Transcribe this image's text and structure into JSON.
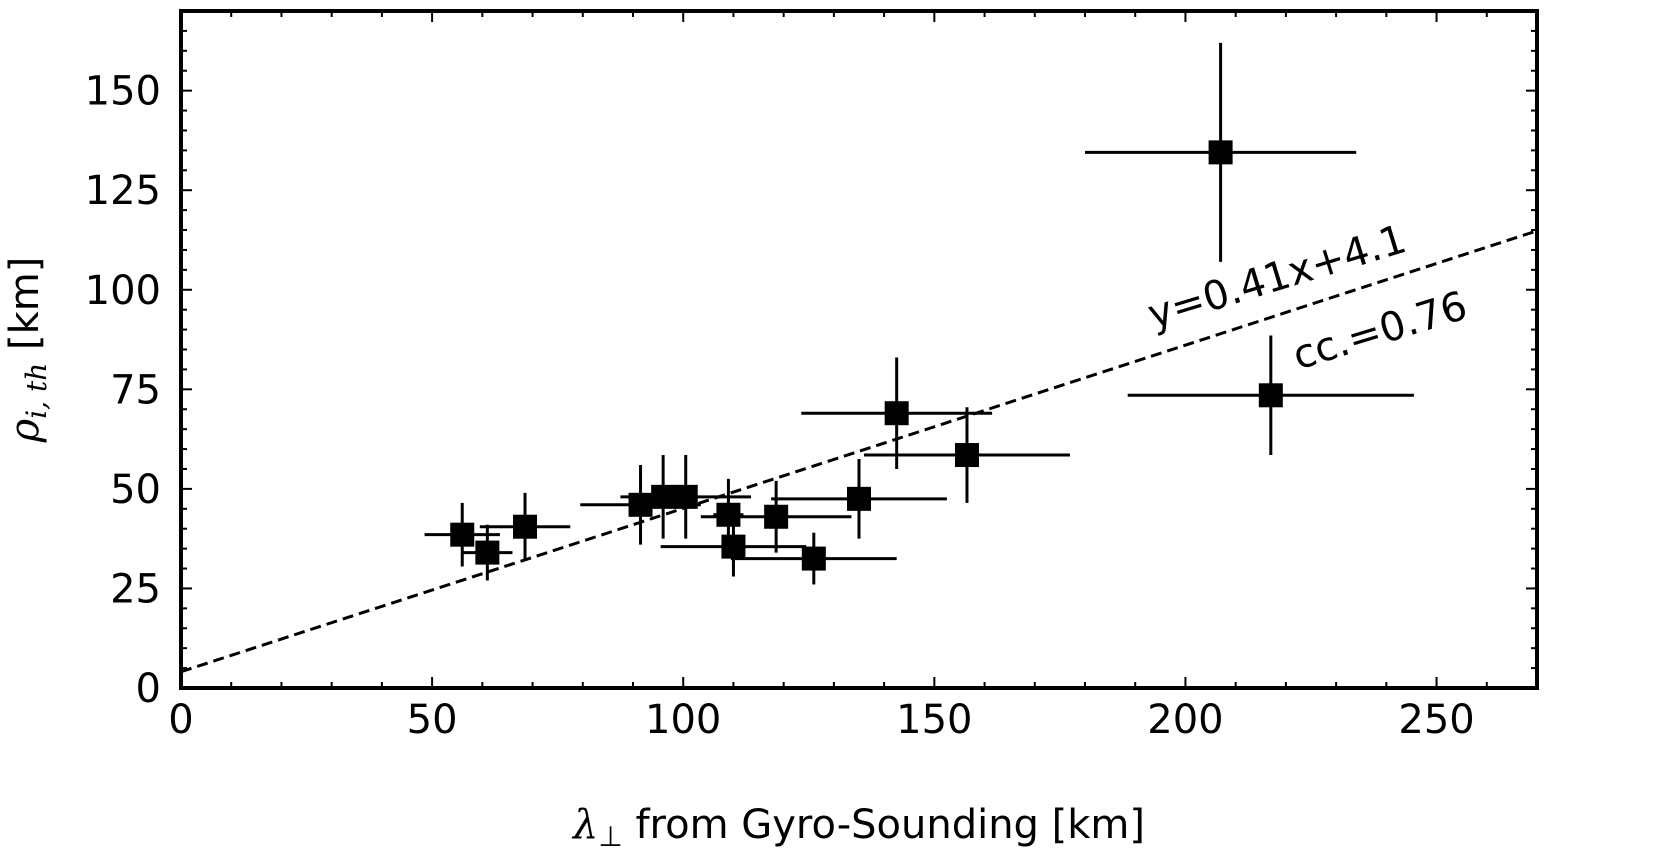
{
  "chart_data": {
    "type": "scatter",
    "title": "",
    "xlabel": {
      "symbol": "λ",
      "subscript": "⊥",
      "text": " from Gyro-Sounding [km]"
    },
    "ylabel": {
      "symbol": "ρ",
      "subscript": "i, th",
      "text": " [km]"
    },
    "xlim": [
      0,
      270
    ],
    "ylim": [
      0,
      170
    ],
    "xticks": [
      0,
      50,
      100,
      150,
      200,
      250
    ],
    "yticks": [
      0,
      25,
      50,
      75,
      100,
      125,
      150
    ],
    "xtick_labels": [
      "0",
      "50",
      "100",
      "150",
      "200",
      "250"
    ],
    "ytick_labels": [
      "0",
      "25",
      "50",
      "75",
      "100",
      "125",
      "150"
    ],
    "grid": false,
    "marker": "square",
    "marker_color": "#000000",
    "points": [
      {
        "x": 56,
        "y": 38.5,
        "xerr": 7.5,
        "yerr": 8
      },
      {
        "x": 61,
        "y": 34,
        "xerr": 5,
        "yerr": 7
      },
      {
        "x": 68.5,
        "y": 40.5,
        "xerr": 9,
        "yerr": 8.5
      },
      {
        "x": 91.5,
        "y": 46,
        "xerr": 12,
        "yerr": 10
      },
      {
        "x": 96,
        "y": 48,
        "xerr": 6,
        "yerr": 10.5
      },
      {
        "x": 100.5,
        "y": 48,
        "xerr": 13,
        "yerr": 10.5
      },
      {
        "x": 109,
        "y": 43.5,
        "xerr": 3,
        "yerr": 9
      },
      {
        "x": 110,
        "y": 35.5,
        "xerr": 14.5,
        "yerr": 7.5
      },
      {
        "x": 118.5,
        "y": 43,
        "xerr": 15,
        "yerr": 9
      },
      {
        "x": 126,
        "y": 32.5,
        "xerr": 16.5,
        "yerr": 6.5
      },
      {
        "x": 135,
        "y": 47.5,
        "xerr": 17.5,
        "yerr": 10
      },
      {
        "x": 142.5,
        "y": 69,
        "xerr": 19,
        "yerr": 14
      },
      {
        "x": 156.5,
        "y": 58.5,
        "xerr": 20.5,
        "yerr": 12
      },
      {
        "x": 207,
        "y": 134.5,
        "xerr": 27,
        "yerr": 27.5
      },
      {
        "x": 217,
        "y": 73.5,
        "xerr": 28.5,
        "yerr": 15
      }
    ],
    "fit": {
      "slope": 0.41,
      "intercept": 4.1,
      "style": "dashed",
      "x_range": [
        0,
        270
      ]
    },
    "annotations": [
      {
        "text": "y=0.41x+4.1",
        "x": 219,
        "y": 100,
        "rotation_deg": -17
      },
      {
        "text": "cc.=0.76",
        "x": 239.5,
        "y": 86.5,
        "rotation_deg": -17
      }
    ]
  }
}
